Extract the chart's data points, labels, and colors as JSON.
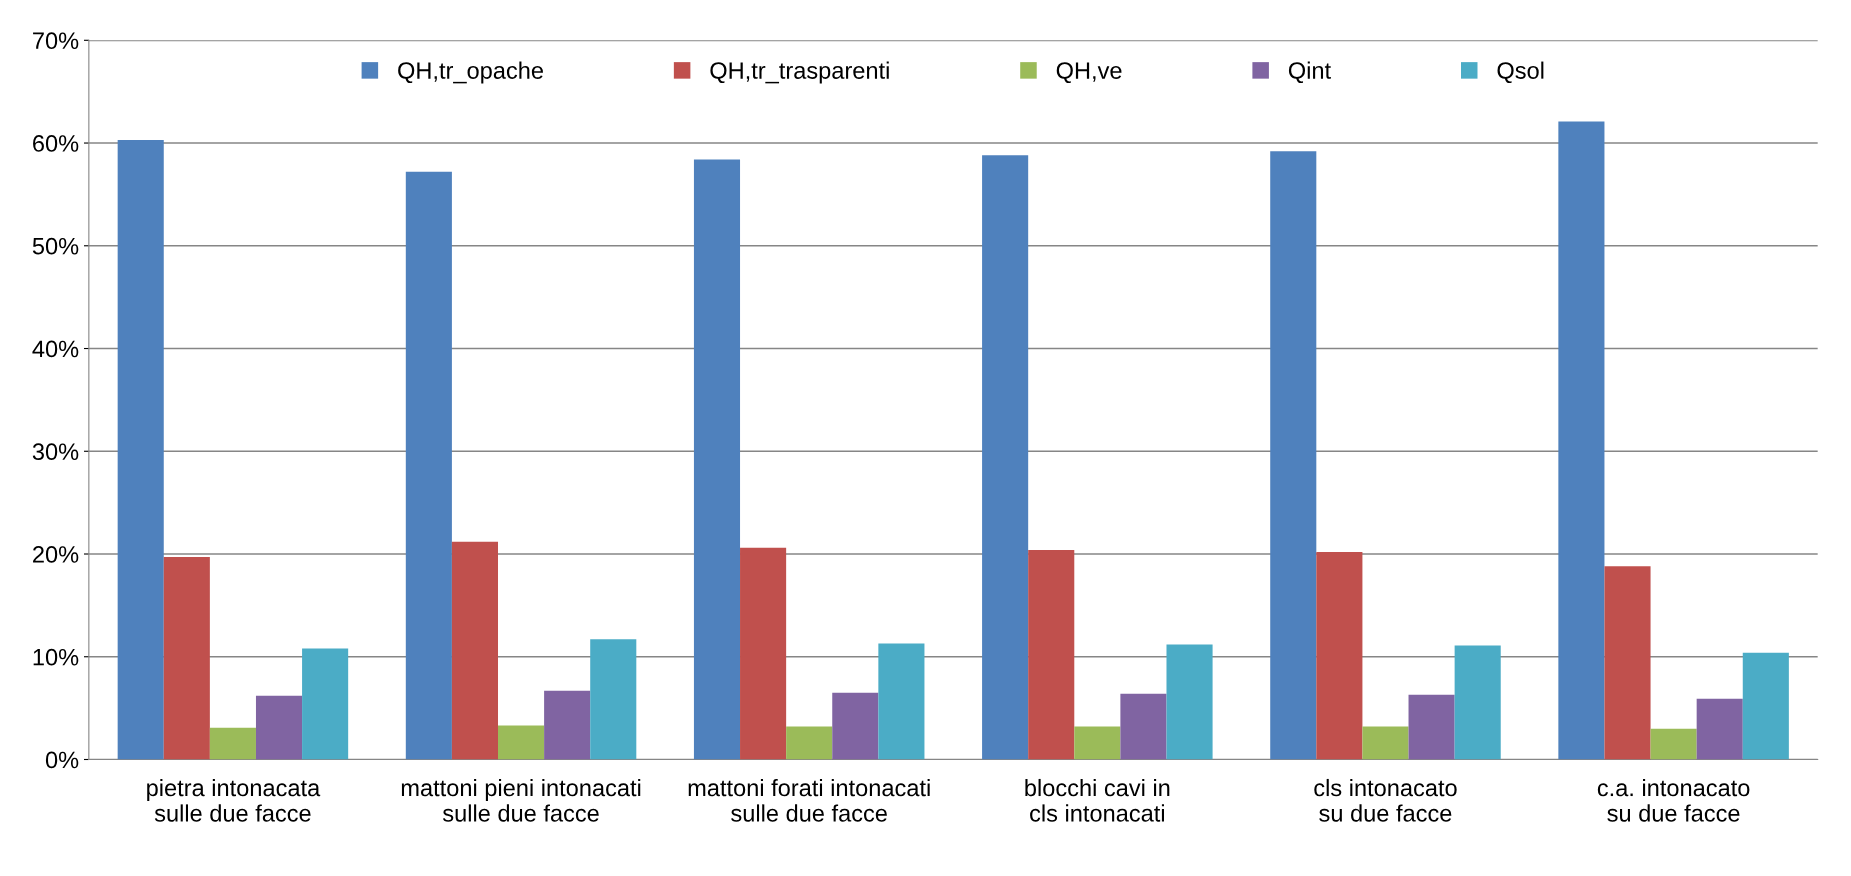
{
  "chart_data": {
    "type": "bar",
    "categories": [
      "pietra intonacata\nsulle due facce",
      "mattoni pieni intonacati\nsulle due facce",
      "mattoni forati intonacati\nsulle due facce",
      "blocchi cavi in\ncls intonacati",
      "cls intonacato\nsu due facce",
      "c.a. intonacato\nsu due facce"
    ],
    "series": [
      {
        "name": "QH,tr_opache",
        "color": "#4f81bd",
        "values": [
          60.3,
          57.2,
          58.4,
          58.8,
          59.2,
          62.1
        ]
      },
      {
        "name": "QH,tr_trasparenti",
        "color": "#c0504d",
        "values": [
          19.7,
          21.2,
          20.6,
          20.4,
          20.2,
          18.8
        ]
      },
      {
        "name": "QH,ve",
        "color": "#9bbb59",
        "values": [
          3.1,
          3.3,
          3.2,
          3.2,
          3.2,
          3.0
        ]
      },
      {
        "name": "Qint",
        "color": "#8064a2",
        "values": [
          6.2,
          6.7,
          6.5,
          6.4,
          6.3,
          5.9
        ]
      },
      {
        "name": "Qsol",
        "color": "#4bacc6",
        "values": [
          10.8,
          11.7,
          11.3,
          11.2,
          11.1,
          10.4
        ]
      }
    ],
    "ylim": [
      0,
      70
    ],
    "yticks": [
      {
        "value": 0,
        "label": "0%"
      },
      {
        "value": 10,
        "label": "10%"
      },
      {
        "value": 20,
        "label": "20%"
      },
      {
        "value": 30,
        "label": "30%"
      },
      {
        "value": 40,
        "label": "40%"
      },
      {
        "value": 50,
        "label": "50%"
      },
      {
        "value": 60,
        "label": "60%"
      },
      {
        "value": 70,
        "label": "70%"
      }
    ],
    "grid": "y",
    "legend": "top"
  }
}
